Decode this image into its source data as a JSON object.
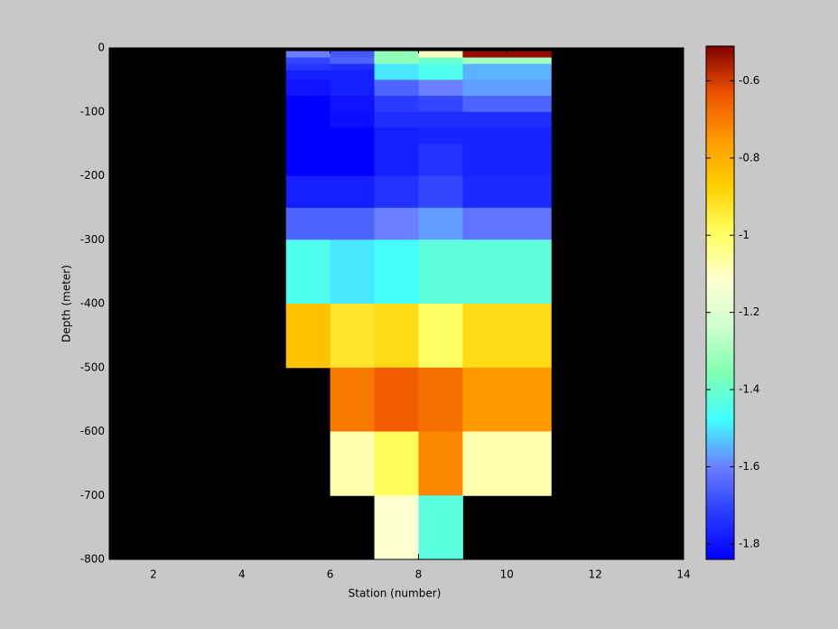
{
  "chart_data": {
    "type": "heatmap",
    "xlabel": "Station (number)",
    "ylabel": "Depth (meter)",
    "background": "#000000",
    "xlim": [
      1,
      14
    ],
    "xticks": [
      2,
      4,
      6,
      8,
      10,
      12,
      14
    ],
    "ylim": [
      -800,
      0
    ],
    "yticks": [
      -800,
      -700,
      -600,
      -500,
      -400,
      -300,
      -200,
      -100,
      0
    ],
    "x_edges": [
      5,
      6,
      7,
      8,
      9,
      11
    ],
    "y_edges": [
      -5,
      -15,
      -25,
      -35,
      -50,
      -75,
      -100,
      -125,
      -150,
      -200,
      -250,
      -300,
      -400,
      -500,
      -600,
      -700,
      -800
    ],
    "values": [
      [
        -1.6,
        -1.67,
        -1.33,
        -1.1,
        -0.53
      ],
      [
        -1.7,
        -1.65,
        -1.33,
        -1.4,
        -1.3
      ],
      [
        -1.73,
        -1.75,
        -1.5,
        -1.45,
        -1.55
      ],
      [
        -1.78,
        -1.78,
        -1.5,
        -1.45,
        -1.55
      ],
      [
        -1.8,
        -1.78,
        -1.65,
        -1.6,
        -1.57
      ],
      [
        -1.84,
        -1.8,
        -1.72,
        -1.7,
        -1.65
      ],
      [
        -1.84,
        -1.81,
        -1.75,
        -1.75,
        -1.75
      ],
      [
        -1.84,
        -1.84,
        -1.78,
        -1.77,
        -1.77
      ],
      [
        -1.84,
        -1.84,
        -1.78,
        -1.74,
        -1.77
      ],
      [
        -1.78,
        -1.78,
        -1.74,
        -1.7,
        -1.76
      ],
      [
        -1.65,
        -1.65,
        -1.6,
        -1.57,
        -1.62
      ],
      [
        -1.45,
        -1.5,
        -1.47,
        -1.42,
        -1.42
      ],
      [
        -0.84,
        -0.93,
        -0.9,
        -1.0,
        -0.9
      ],
      [
        null,
        -0.7,
        -0.65,
        -0.68,
        -0.75
      ],
      [
        null,
        -1.08,
        -0.99,
        -0.72,
        -1.08
      ],
      [
        null,
        null,
        -1.12,
        -1.43,
        null
      ]
    ],
    "clim": [
      -1.84,
      -0.51
    ],
    "colormap": [
      "#0000ff",
      "#2a3cff",
      "#6a80ff",
      "#40ffff",
      "#80ffb0",
      "#d0ffd0",
      "#ffffd0",
      "#ffff60",
      "#ffd000",
      "#ff9a00",
      "#ee5000",
      "#800000"
    ],
    "cticks": [
      -1.8,
      -1.6,
      -1.4,
      -1.2,
      -1,
      -0.8,
      -0.6
    ]
  }
}
